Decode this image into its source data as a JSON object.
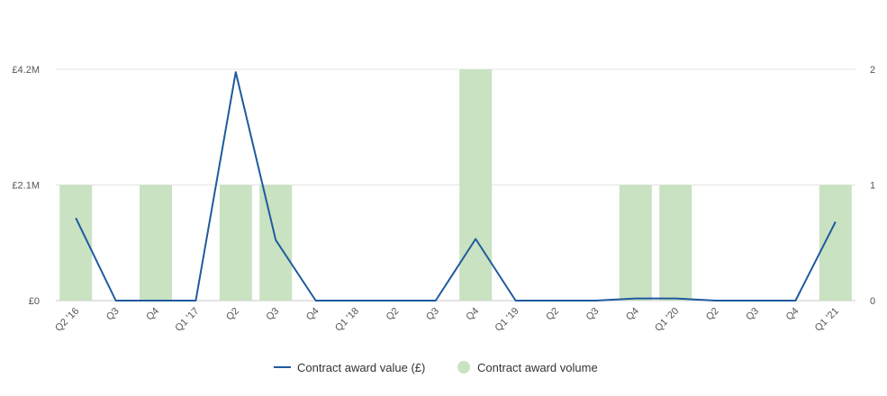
{
  "chart_data": {
    "type": "bar+line",
    "categories": [
      "Q2 '16",
      "Q3",
      "Q4",
      "Q1 '17",
      "Q2",
      "Q3",
      "Q4",
      "Q1 '18",
      "Q2",
      "Q3",
      "Q4",
      "Q1 '19",
      "Q2",
      "Q3",
      "Q4",
      "Q1 '20",
      "Q2",
      "Q3",
      "Q4",
      "Q1 '21"
    ],
    "series": [
      {
        "name": "Contract award volume",
        "kind": "bar",
        "axis": "right",
        "color": "#c9e2c2",
        "values": [
          1,
          0,
          1,
          0,
          1,
          1,
          0,
          0,
          0,
          0,
          2,
          0,
          0,
          0,
          1,
          1,
          0,
          0,
          0,
          1
        ]
      },
      {
        "name": "Contract award value (£)",
        "kind": "line",
        "axis": "left",
        "color": "#1f5a9e",
        "values": [
          1500000,
          0,
          0,
          0,
          4150000,
          1100000,
          0,
          0,
          0,
          0,
          1120000,
          0,
          0,
          0,
          40000,
          40000,
          0,
          0,
          0,
          1430000
        ]
      }
    ],
    "y_left": {
      "min": 0,
      "max": 4200000,
      "ticks": [
        0,
        2100000,
        4200000
      ],
      "tick_labels": [
        "£0",
        "£2.1M",
        "£4.2M"
      ]
    },
    "y_right": {
      "min": 0,
      "max": 2,
      "ticks": [
        0,
        1,
        2
      ],
      "tick_labels": [
        "0",
        "1",
        "2"
      ]
    },
    "grid": true,
    "legend": {
      "placement": "bottom-center",
      "items": [
        "Contract award value (£)",
        "Contract award volume"
      ]
    },
    "title": "",
    "xlabel": "",
    "ylabel": ""
  }
}
